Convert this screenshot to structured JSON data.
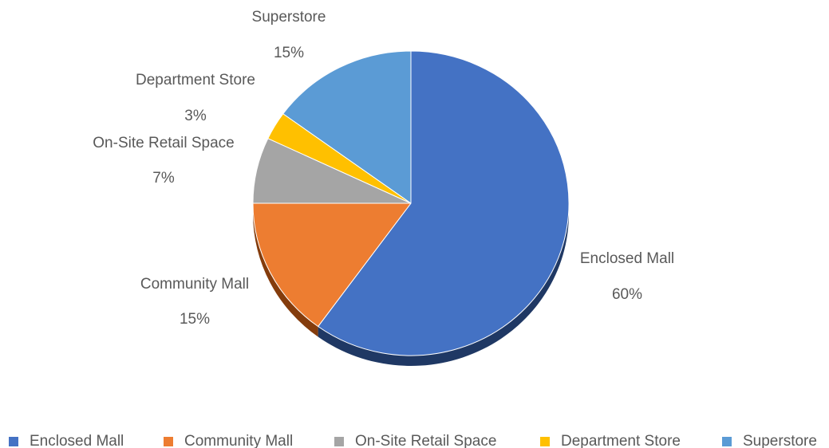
{
  "chart_data": {
    "type": "pie",
    "title": "",
    "slices": [
      {
        "label": "Enclosed Mall",
        "value": 60,
        "percent_label": "60%",
        "color": "#4472C4",
        "shade": "#1F3864"
      },
      {
        "label": "Community Mall",
        "value": 15,
        "percent_label": "15%",
        "color": "#ED7D31",
        "shade": "#843C0C"
      },
      {
        "label": "On-Site Retail Space",
        "value": 7,
        "percent_label": "7%",
        "color": "#A5A5A5",
        "shade": "#595959"
      },
      {
        "label": "Department Store",
        "value": 3,
        "percent_label": "3%",
        "color": "#FFC000",
        "shade": "#7F6000"
      },
      {
        "label": "Superstore",
        "value": 15,
        "percent_label": "15%",
        "color": "#5B9BD5",
        "shade": "#1F4E79"
      }
    ],
    "style": "3d",
    "start_angle": "12 o'clock, clockwise",
    "legend": {
      "position": "bottom",
      "entries": [
        "Enclosed Mall",
        "Community Mall",
        "On-Site Retail Space",
        "Department Store",
        "Superstore"
      ]
    }
  }
}
